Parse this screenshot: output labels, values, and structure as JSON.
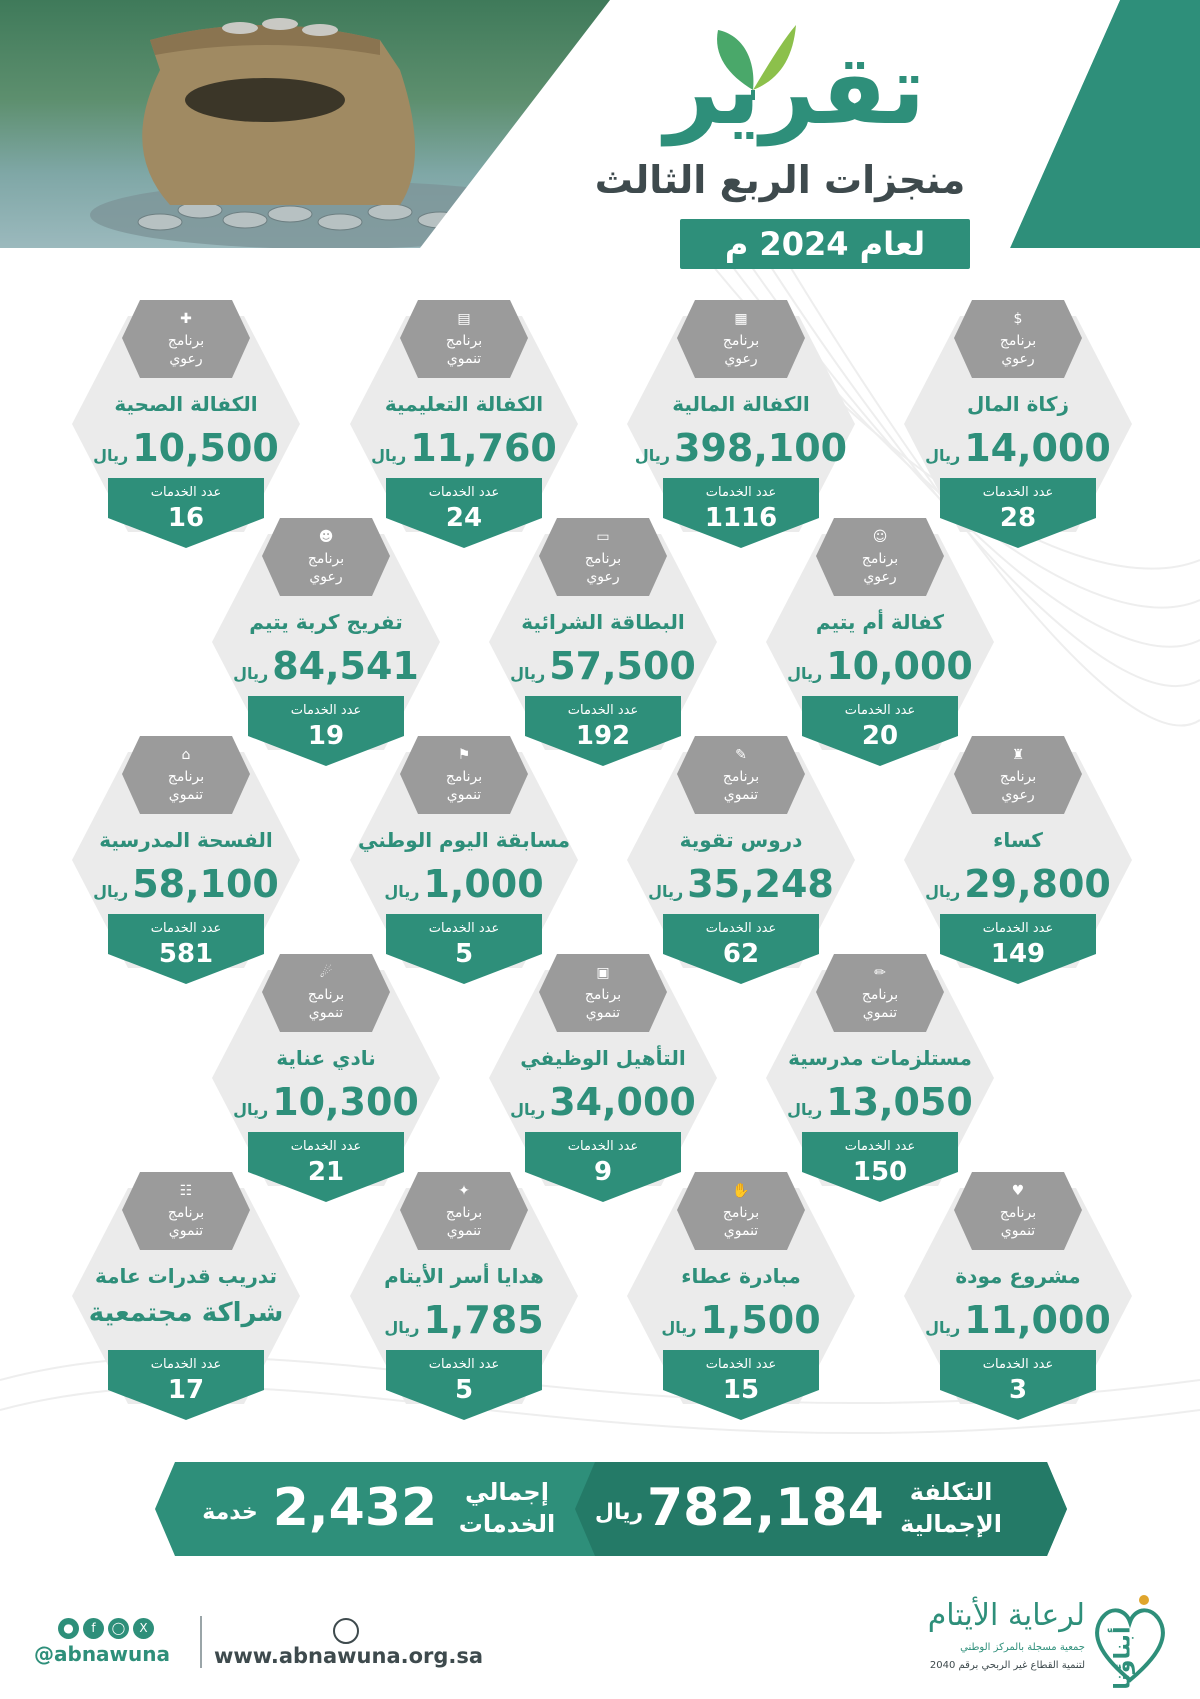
{
  "header": {
    "title": "تقرير",
    "subtitle": "منجزات الربع الثالث",
    "year_label": "لعام 2024 م"
  },
  "colors": {
    "primary": "#2e8f7a",
    "card_bg": "#ebebeb",
    "badge_gray": "#9b9b9b",
    "text_dark": "#3e4a4d"
  },
  "programs": [
    {
      "program_line1": "برنامج",
      "program_line2": "رعوي",
      "icon": "coin-bag-icon",
      "name": "زكاة المال",
      "amount": "14,000",
      "currency": "ريال",
      "services_label": "عدد الخدمات",
      "services": "28"
    },
    {
      "program_line1": "برنامج",
      "program_line2": "رعوي",
      "icon": "calculator-icon",
      "name": "الكفالة المالية",
      "amount": "398,100",
      "currency": "ريال",
      "services_label": "عدد الخدمات",
      "services": "1116"
    },
    {
      "program_line1": "برنامج",
      "program_line2": "تنموي",
      "icon": "book-icon",
      "name": "الكفالة التعليمية",
      "amount": "11,760",
      "currency": "ريال",
      "services_label": "عدد الخدمات",
      "services": "24"
    },
    {
      "program_line1": "برنامج",
      "program_line2": "رعوي",
      "icon": "medical-hand-icon",
      "name": "الكفالة الصحية",
      "amount": "10,500",
      "currency": "ريال",
      "services_label": "عدد الخدمات",
      "services": "16"
    },
    {
      "program_line1": "برنامج",
      "program_line2": "رعوي",
      "icon": "mother-icon",
      "name": "كفالة أم يتيم",
      "amount": "10,000",
      "currency": "ريال",
      "services_label": "عدد الخدمات",
      "services": "20"
    },
    {
      "program_line1": "برنامج",
      "program_line2": "رعوي",
      "icon": "card-icon",
      "name": "البطاقة الشرائية",
      "amount": "57,500",
      "currency": "ريال",
      "services_label": "عدد الخدمات",
      "services": "192"
    },
    {
      "program_line1": "برنامج",
      "program_line2": "رعوي",
      "icon": "people-icon",
      "name": "تفريج كربة يتيم",
      "amount": "84,541",
      "currency": "ريال",
      "services_label": "عدد الخدمات",
      "services": "19"
    },
    {
      "program_line1": "برنامج",
      "program_line2": "رعوي",
      "icon": "clothes-icon",
      "name": "كساء",
      "amount": "29,800",
      "currency": "ريال",
      "services_label": "عدد الخدمات",
      "services": "149"
    },
    {
      "program_line1": "برنامج",
      "program_line2": "تنموي",
      "icon": "notebook-icon",
      "name": "دروس تقوية",
      "amount": "35,248",
      "currency": "ريال",
      "services_label": "عدد الخدمات",
      "services": "62"
    },
    {
      "program_line1": "برنامج",
      "program_line2": "تنموي",
      "icon": "flag-icon",
      "name": "مسابقة اليوم الوطني",
      "amount": "1,000",
      "currency": "ريال",
      "services_label": "عدد الخدمات",
      "services": "5"
    },
    {
      "program_line1": "برنامج",
      "program_line2": "تنموي",
      "icon": "school-icon",
      "name": "الفسحة المدرسية",
      "amount": "58,100",
      "currency": "ريال",
      "services_label": "عدد الخدمات",
      "services": "581"
    },
    {
      "program_line1": "برنامج",
      "program_line2": "تنموي",
      "icon": "pencil-icon",
      "name": "مستلزمات مدرسية",
      "amount": "13,050",
      "currency": "ريال",
      "services_label": "عدد الخدمات",
      "services": "150"
    },
    {
      "program_line1": "برنامج",
      "program_line2": "تنموي",
      "icon": "briefcase-icon",
      "name": "التأهيل الوظيفي",
      "amount": "34,000",
      "currency": "ريال",
      "services_label": "عدد الخدمات",
      "services": "9"
    },
    {
      "program_line1": "برنامج",
      "program_line2": "تنموي",
      "icon": "running-icon",
      "name": "نادي عناية",
      "amount": "10,300",
      "currency": "ريال",
      "services_label": "عدد الخدمات",
      "services": "21"
    },
    {
      "program_line1": "برنامج",
      "program_line2": "تنموي",
      "icon": "heart-hand-icon",
      "name": "مشروع مودة",
      "amount": "11,000",
      "currency": "ريال",
      "services_label": "عدد الخدمات",
      "services": "3"
    },
    {
      "program_line1": "برنامج",
      "program_line2": "تنموي",
      "icon": "giving-hands-icon",
      "name": "مبادرة عطاء",
      "amount": "1,500",
      "currency": "ريال",
      "services_label": "عدد الخدمات",
      "services": "15"
    },
    {
      "program_line1": "برنامج",
      "program_line2": "تنموي",
      "icon": "gift-icon",
      "name": "هدايا أسر الأيتام",
      "amount": "1,785",
      "currency": "ريال",
      "services_label": "عدد الخدمات",
      "services": "5"
    },
    {
      "program_line1": "برنامج",
      "program_line2": "تنموي",
      "icon": "training-icon",
      "name": "تدريب قدرات عامة",
      "amount_text": "شراكة مجتمعية",
      "services_label": "عدد الخدمات",
      "services": "17"
    }
  ],
  "totals": {
    "cost_label_line1": "التكلفة",
    "cost_label_line2": "الإجمالية",
    "cost_value": "782,184",
    "cost_currency": "ريال",
    "services_label_line1": "إجمالي",
    "services_label_line2": "الخدمات",
    "services_value": "2,432",
    "services_unit": "خدمة"
  },
  "footer": {
    "handle": "@abnawuna",
    "website": "www.abnawuna.org.sa",
    "org_name": "لرعاية الأيتام",
    "org_logo_word": "أبناؤنا",
    "org_registration": "جمعية مسجلة بالمركز الوطني",
    "org_vision": "لتنمية القطاع غير الربحي برقم 2040"
  }
}
